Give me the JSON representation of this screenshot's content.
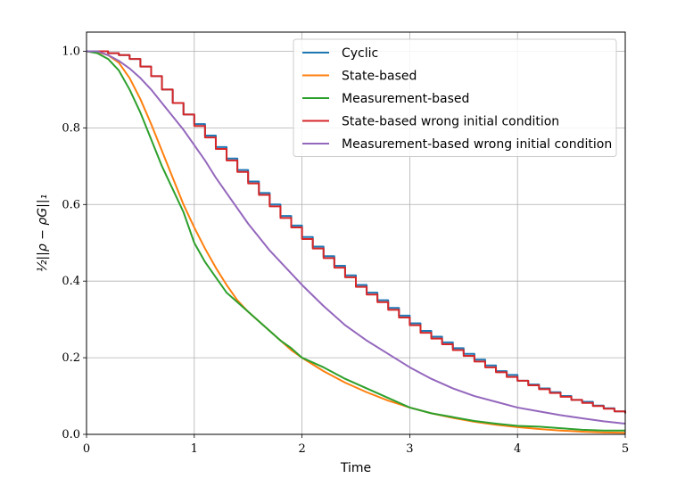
{
  "chart_data": {
    "type": "line",
    "xlabel": "Time",
    "ylabel": "½||ρ − ρG||₁",
    "xlim": [
      0,
      5
    ],
    "ylim": [
      0,
      1.05
    ],
    "xticks": [
      "0",
      "1",
      "2",
      "3",
      "4",
      "5"
    ],
    "yticks": [
      "0.0",
      "0.2",
      "0.4",
      "0.6",
      "0.8",
      "1.0"
    ],
    "grid": true,
    "legend_position": "top-right",
    "series": [
      {
        "name": "Cyclic",
        "color": "#1f77b4",
        "step": true,
        "x": [
          0,
          0.1,
          0.2,
          0.3,
          0.4,
          0.5,
          0.6,
          0.7,
          0.8,
          0.9,
          1.0,
          1.1,
          1.2,
          1.3,
          1.4,
          1.5,
          1.6,
          1.7,
          1.8,
          1.9,
          2.0,
          2.1,
          2.2,
          2.3,
          2.4,
          2.5,
          2.6,
          2.7,
          2.8,
          2.9,
          3.0,
          3.1,
          3.2,
          3.3,
          3.4,
          3.5,
          3.6,
          3.7,
          3.8,
          3.9,
          4.0,
          4.1,
          4.2,
          4.3,
          4.4,
          4.5,
          4.6,
          4.7,
          4.8,
          4.9,
          5.0
        ],
        "y": [
          1.0,
          1.0,
          0.995,
          0.99,
          0.98,
          0.96,
          0.935,
          0.9,
          0.865,
          0.835,
          0.81,
          0.78,
          0.75,
          0.72,
          0.69,
          0.66,
          0.63,
          0.6,
          0.57,
          0.545,
          0.515,
          0.49,
          0.465,
          0.44,
          0.415,
          0.39,
          0.37,
          0.35,
          0.33,
          0.31,
          0.29,
          0.27,
          0.255,
          0.24,
          0.225,
          0.21,
          0.195,
          0.18,
          0.165,
          0.155,
          0.14,
          0.13,
          0.12,
          0.11,
          0.1,
          0.09,
          0.085,
          0.075,
          0.068,
          0.06,
          0.055
        ]
      },
      {
        "name": "State-based",
        "color": "#ff7f0e",
        "step": false,
        "x": [
          0,
          0.1,
          0.2,
          0.3,
          0.4,
          0.5,
          0.6,
          0.7,
          0.8,
          0.9,
          1.0,
          1.1,
          1.2,
          1.3,
          1.4,
          1.5,
          1.6,
          1.7,
          1.8,
          1.9,
          2.0,
          2.2,
          2.4,
          2.6,
          2.8,
          3.0,
          3.2,
          3.4,
          3.6,
          3.8,
          4.0,
          4.2,
          4.4,
          4.6,
          4.8,
          5.0
        ],
        "y": [
          1.0,
          0.998,
          0.99,
          0.97,
          0.93,
          0.875,
          0.81,
          0.74,
          0.67,
          0.6,
          0.54,
          0.485,
          0.435,
          0.39,
          0.35,
          0.32,
          0.295,
          0.27,
          0.245,
          0.22,
          0.2,
          0.165,
          0.135,
          0.11,
          0.088,
          0.07,
          0.055,
          0.043,
          0.033,
          0.025,
          0.019,
          0.014,
          0.01,
          0.007,
          0.005,
          0.004
        ]
      },
      {
        "name": "Measurement-based",
        "color": "#2ca02c",
        "step": false,
        "x": [
          0,
          0.1,
          0.2,
          0.3,
          0.4,
          0.5,
          0.6,
          0.7,
          0.8,
          0.9,
          1.0,
          1.1,
          1.2,
          1.3,
          1.4,
          1.5,
          1.6,
          1.7,
          1.8,
          1.9,
          2.0,
          2.2,
          2.4,
          2.6,
          2.8,
          3.0,
          3.2,
          3.4,
          3.6,
          3.8,
          4.0,
          4.2,
          4.4,
          4.6,
          4.8,
          5.0
        ],
        "y": [
          1.0,
          0.995,
          0.98,
          0.95,
          0.9,
          0.84,
          0.77,
          0.7,
          0.64,
          0.58,
          0.5,
          0.45,
          0.41,
          0.37,
          0.345,
          0.32,
          0.295,
          0.27,
          0.245,
          0.225,
          0.2,
          0.175,
          0.145,
          0.12,
          0.095,
          0.07,
          0.055,
          0.045,
          0.035,
          0.028,
          0.022,
          0.02,
          0.016,
          0.012,
          0.01,
          0.01
        ]
      },
      {
        "name": "State-based wrong initial condition",
        "color": "#d62728",
        "step": true,
        "x": [
          0,
          0.1,
          0.2,
          0.3,
          0.4,
          0.5,
          0.6,
          0.7,
          0.8,
          0.9,
          1.0,
          1.1,
          1.2,
          1.3,
          1.4,
          1.5,
          1.6,
          1.7,
          1.8,
          1.9,
          2.0,
          2.1,
          2.2,
          2.3,
          2.4,
          2.5,
          2.6,
          2.7,
          2.8,
          2.9,
          3.0,
          3.1,
          3.2,
          3.3,
          3.4,
          3.5,
          3.6,
          3.7,
          3.8,
          3.9,
          4.0,
          4.1,
          4.2,
          4.3,
          4.4,
          4.5,
          4.6,
          4.7,
          4.8,
          4.9,
          5.0
        ],
        "y": [
          1.0,
          1.0,
          0.995,
          0.99,
          0.98,
          0.96,
          0.935,
          0.9,
          0.865,
          0.835,
          0.805,
          0.775,
          0.745,
          0.715,
          0.685,
          0.655,
          0.625,
          0.595,
          0.565,
          0.54,
          0.51,
          0.485,
          0.46,
          0.435,
          0.41,
          0.385,
          0.365,
          0.345,
          0.325,
          0.305,
          0.285,
          0.265,
          0.25,
          0.235,
          0.22,
          0.205,
          0.19,
          0.175,
          0.162,
          0.15,
          0.14,
          0.128,
          0.118,
          0.108,
          0.098,
          0.09,
          0.082,
          0.074,
          0.067,
          0.06,
          0.055
        ]
      },
      {
        "name": "Measurement-based wrong initial condition",
        "color": "#9467bd",
        "step": false,
        "x": [
          0,
          0.1,
          0.2,
          0.3,
          0.4,
          0.5,
          0.6,
          0.7,
          0.8,
          0.9,
          1.0,
          1.1,
          1.2,
          1.3,
          1.4,
          1.5,
          1.6,
          1.7,
          1.8,
          1.9,
          2.0,
          2.2,
          2.4,
          2.6,
          2.8,
          3.0,
          3.2,
          3.4,
          3.6,
          3.8,
          4.0,
          4.2,
          4.4,
          4.6,
          4.8,
          5.0
        ],
        "y": [
          1.0,
          1.0,
          0.99,
          0.975,
          0.955,
          0.93,
          0.9,
          0.865,
          0.83,
          0.795,
          0.755,
          0.715,
          0.67,
          0.63,
          0.59,
          0.55,
          0.515,
          0.48,
          0.45,
          0.42,
          0.39,
          0.335,
          0.285,
          0.245,
          0.21,
          0.175,
          0.145,
          0.12,
          0.1,
          0.085,
          0.07,
          0.06,
          0.05,
          0.042,
          0.034,
          0.028
        ]
      }
    ]
  }
}
